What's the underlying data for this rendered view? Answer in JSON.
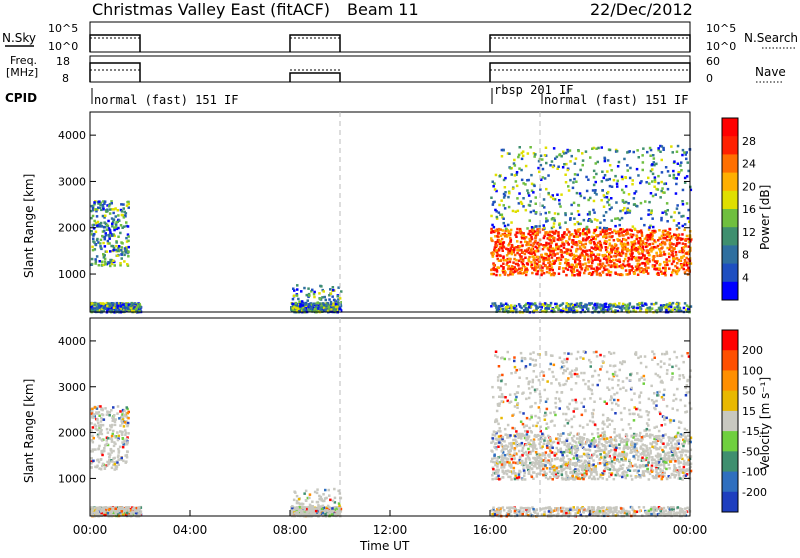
{
  "header": {
    "title": "Christmas Valley East (fitACF)",
    "beam": "Beam 11",
    "date": "22/Dec/2012"
  },
  "top_panels": {
    "nsky_label": "N.Sky",
    "nsky_ticks": [
      "10^5",
      "10^0"
    ],
    "nsearch_label": "N.Search",
    "nsearch_ticks": [
      "10^5",
      "10^0"
    ],
    "freq_label": "Freq.",
    "freq_unit": "[MHz]",
    "freq_ticks": [
      "18",
      "8"
    ],
    "nave_label": "Nave",
    "nave_ticks": [
      "60",
      "0"
    ],
    "cpid_label": "CPID"
  },
  "cpid_segments": [
    {
      "label": "normal (fast) 151 IF",
      "start_hour": 0
    },
    {
      "label": "rbsp 201 IF",
      "start_hour": 16
    },
    {
      "label": "normal (fast) 151 IF",
      "start_hour": 18
    }
  ],
  "operating_intervals_hours": [
    [
      0,
      2
    ],
    [
      8,
      10
    ],
    [
      16,
      24
    ]
  ],
  "colors": {
    "power_scale": [
      "#0000ff",
      "#1f4fc0",
      "#2f6f9f",
      "#3f8f6f",
      "#6fbf3f",
      "#dfdf00",
      "#ffaf00",
      "#ff6f00",
      "#ff2000",
      "#ff0000"
    ],
    "velocity_scale": [
      "#1f3fbf",
      "#2f6fbf",
      "#3f8f6f",
      "#6fcf3f",
      "#c8c8c0",
      "#e8b800",
      "#ff8f00",
      "#ff5000",
      "#ff0000"
    ]
  },
  "chart_data": [
    {
      "type": "heatmap",
      "panel": "power",
      "ylabel": "Slant Range [km]",
      "yticks": [
        "4000",
        "3000",
        "2000",
        "1000"
      ],
      "ylim": [
        180,
        4500
      ],
      "xlim": [
        0,
        24
      ],
      "colorbar_label": "Power [dB]",
      "colorbar_ticks": [
        "28",
        "24",
        "20",
        "16",
        "12",
        "8",
        "4"
      ],
      "colorbar_range": [
        0,
        32
      ]
    },
    {
      "type": "heatmap",
      "panel": "velocity",
      "ylabel": "Slant Range [km]",
      "yticks": [
        "4000",
        "3000",
        "2000",
        "1000"
      ],
      "ylim": [
        180,
        4500
      ],
      "xlim": [
        0,
        24
      ],
      "colorbar_label": "Velocity [m s⁻¹]",
      "colorbar_ticks": [
        "200",
        "100",
        "50",
        "15",
        "-15",
        "-50",
        "-100",
        "-200"
      ]
    }
  ],
  "xaxis": {
    "ticks": [
      "00:00",
      "04:00",
      "08:00",
      "12:00",
      "16:00",
      "20:00",
      "00:00"
    ],
    "label": "Time UT"
  }
}
